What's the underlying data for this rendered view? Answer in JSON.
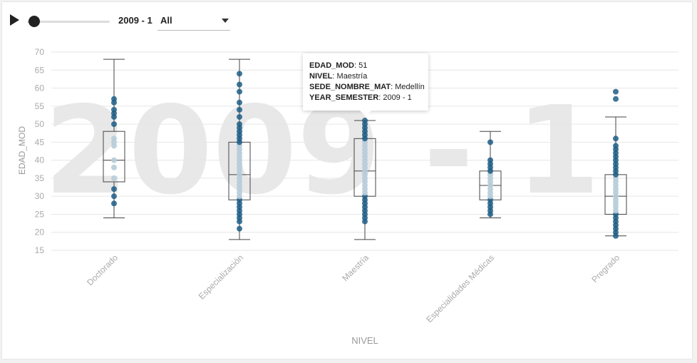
{
  "controls": {
    "year_label": "2009 - 1",
    "filter_value": "All",
    "slider_value": 0
  },
  "tooltip": {
    "rows": [
      {
        "key": "EDAD_MOD",
        "value": "51"
      },
      {
        "key": "NIVEL",
        "value": "Maestría"
      },
      {
        "key": "SEDE_NOMBRE_MAT",
        "value": "Medellín"
      },
      {
        "key": "YEAR_SEMESTER",
        "value": "2009 - 1"
      }
    ]
  },
  "colors": {
    "point": "#1f5e86",
    "point_inner": "#b7ccd9",
    "box_stroke": "#444444",
    "grid": "#e6e6e6",
    "watermark": "#e8e8e8",
    "axis_text": "#aaaaaa"
  },
  "chart_data": {
    "type": "box",
    "watermark": "2009 - 1",
    "xlabel": "NIVEL",
    "ylabel": "EDAD_MOD",
    "ylim": [
      15,
      70
    ],
    "yticks": [
      15,
      20,
      25,
      30,
      35,
      40,
      45,
      50,
      55,
      60,
      65,
      70
    ],
    "categories": [
      "Doctorado",
      "Especialización",
      "Maestría",
      "Especialidades Médicas",
      "Pregrado"
    ],
    "boxes": [
      {
        "category": "Doctorado",
        "min": 24,
        "q1": 34,
        "median": 40,
        "q3": 48,
        "max": 68,
        "points": [
          28,
          30,
          32,
          35,
          38,
          40,
          44,
          45,
          46,
          50,
          52,
          53,
          54,
          56,
          57
        ]
      },
      {
        "category": "Especialización",
        "min": 18,
        "q1": 29,
        "median": 36,
        "q3": 45,
        "max": 68,
        "points": [
          21,
          23,
          24,
          25,
          26,
          27,
          28,
          29,
          30,
          31,
          32,
          33,
          34,
          35,
          36,
          37,
          38,
          39,
          40,
          41,
          42,
          43,
          44,
          45,
          46,
          47,
          48,
          49,
          50,
          52,
          54,
          56,
          59,
          61,
          64
        ]
      },
      {
        "category": "Maestría",
        "min": 18,
        "q1": 30,
        "median": 37,
        "q3": 46,
        "max": 51,
        "points": [
          23,
          24,
          25,
          26,
          27,
          28,
          29,
          30,
          31,
          32,
          33,
          34,
          35,
          36,
          37,
          38,
          39,
          40,
          41,
          42,
          43,
          44,
          45,
          46,
          47,
          48,
          49,
          50,
          51
        ]
      },
      {
        "category": "Especialidades Médicas",
        "min": 24,
        "q1": 29,
        "median": 33,
        "q3": 37,
        "max": 48,
        "points": [
          25,
          26,
          27,
          28,
          29,
          30,
          31,
          32,
          33,
          34,
          35,
          36,
          37,
          38,
          39,
          40,
          45
        ]
      },
      {
        "category": "Pregrado",
        "min": 19,
        "q1": 25,
        "median": 30,
        "q3": 36,
        "max": 52,
        "points": [
          19,
          20,
          21,
          22,
          23,
          24,
          25,
          26,
          27,
          28,
          29,
          30,
          31,
          32,
          33,
          34,
          35,
          36,
          37,
          38,
          39,
          40,
          41,
          42,
          43,
          44,
          46,
          57,
          59
        ]
      }
    ]
  }
}
